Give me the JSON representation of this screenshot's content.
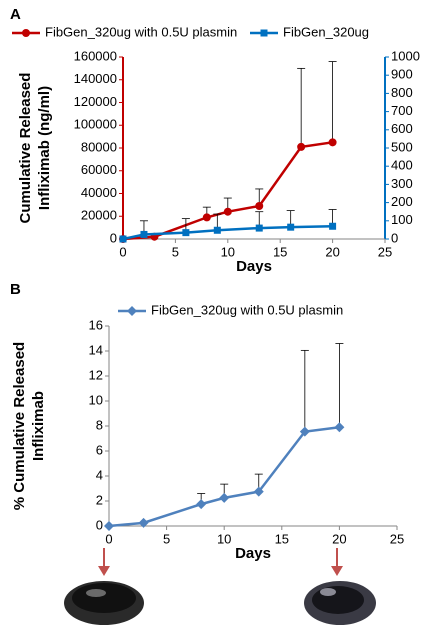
{
  "chart_data": [
    {
      "type": "line",
      "panel": "A",
      "ylabel": [
        "Cumulative Released",
        "Infliximab  (ng/ml)"
      ],
      "xlabel": "Days",
      "xlim": [
        0,
        25
      ],
      "xticks": [
        0,
        5,
        10,
        15,
        20,
        25
      ],
      "ylim": [
        0,
        160000
      ],
      "yticks": [
        0,
        20000,
        40000,
        60000,
        80000,
        100000,
        120000,
        140000,
        160000
      ],
      "y2lim": [
        0,
        1000
      ],
      "y2ticks": [
        0,
        100,
        200,
        300,
        400,
        500,
        600,
        700,
        800,
        900,
        1000
      ],
      "y_axis_color": "#c00000",
      "y2_axis_color": "#0070c0",
      "legend": "top",
      "series": [
        {
          "name": "FibGen_320ug with 0.5U plasmin",
          "color": "#c00000",
          "marker": "circle",
          "axis": "y",
          "x": [
            0,
            3,
            8,
            10,
            13,
            17,
            20
          ],
          "values": [
            0,
            2000,
            19000,
            24000,
            29000,
            81000,
            85000
          ],
          "errors": [
            null,
            null,
            9000,
            12000,
            15000,
            69000,
            71000
          ]
        },
        {
          "name": "FibGen_320ug",
          "color": "#0070c0",
          "marker": "square",
          "axis": "y2",
          "x": [
            0,
            2,
            6,
            9,
            13,
            16,
            20
          ],
          "values": [
            0,
            25,
            35,
            48,
            60,
            65,
            70
          ],
          "errors": [
            null,
            75,
            77,
            89,
            90,
            91,
            92
          ]
        }
      ]
    },
    {
      "type": "line",
      "panel": "B",
      "ylabel": [
        "% Cumulative Released",
        "Infliximab"
      ],
      "xlabel": "Days",
      "xlim": [
        0,
        25
      ],
      "xticks": [
        0,
        5,
        10,
        15,
        20,
        25
      ],
      "ylim": [
        0,
        16
      ],
      "yticks": [
        0,
        2,
        4,
        6,
        8,
        10,
        12,
        14,
        16
      ],
      "legend": "top",
      "series": [
        {
          "name": "FibGen_320ug with 0.5U plasmin",
          "color": "#4f81bd",
          "marker": "diamond",
          "axis": "y",
          "x": [
            0,
            3,
            8,
            10,
            13,
            17,
            20
          ],
          "values": [
            0,
            0.25,
            1.75,
            2.25,
            2.75,
            7.55,
            7.9
          ],
          "errors": [
            null,
            null,
            0.85,
            1.1,
            1.4,
            6.5,
            6.7
          ]
        }
      ]
    }
  ]
}
